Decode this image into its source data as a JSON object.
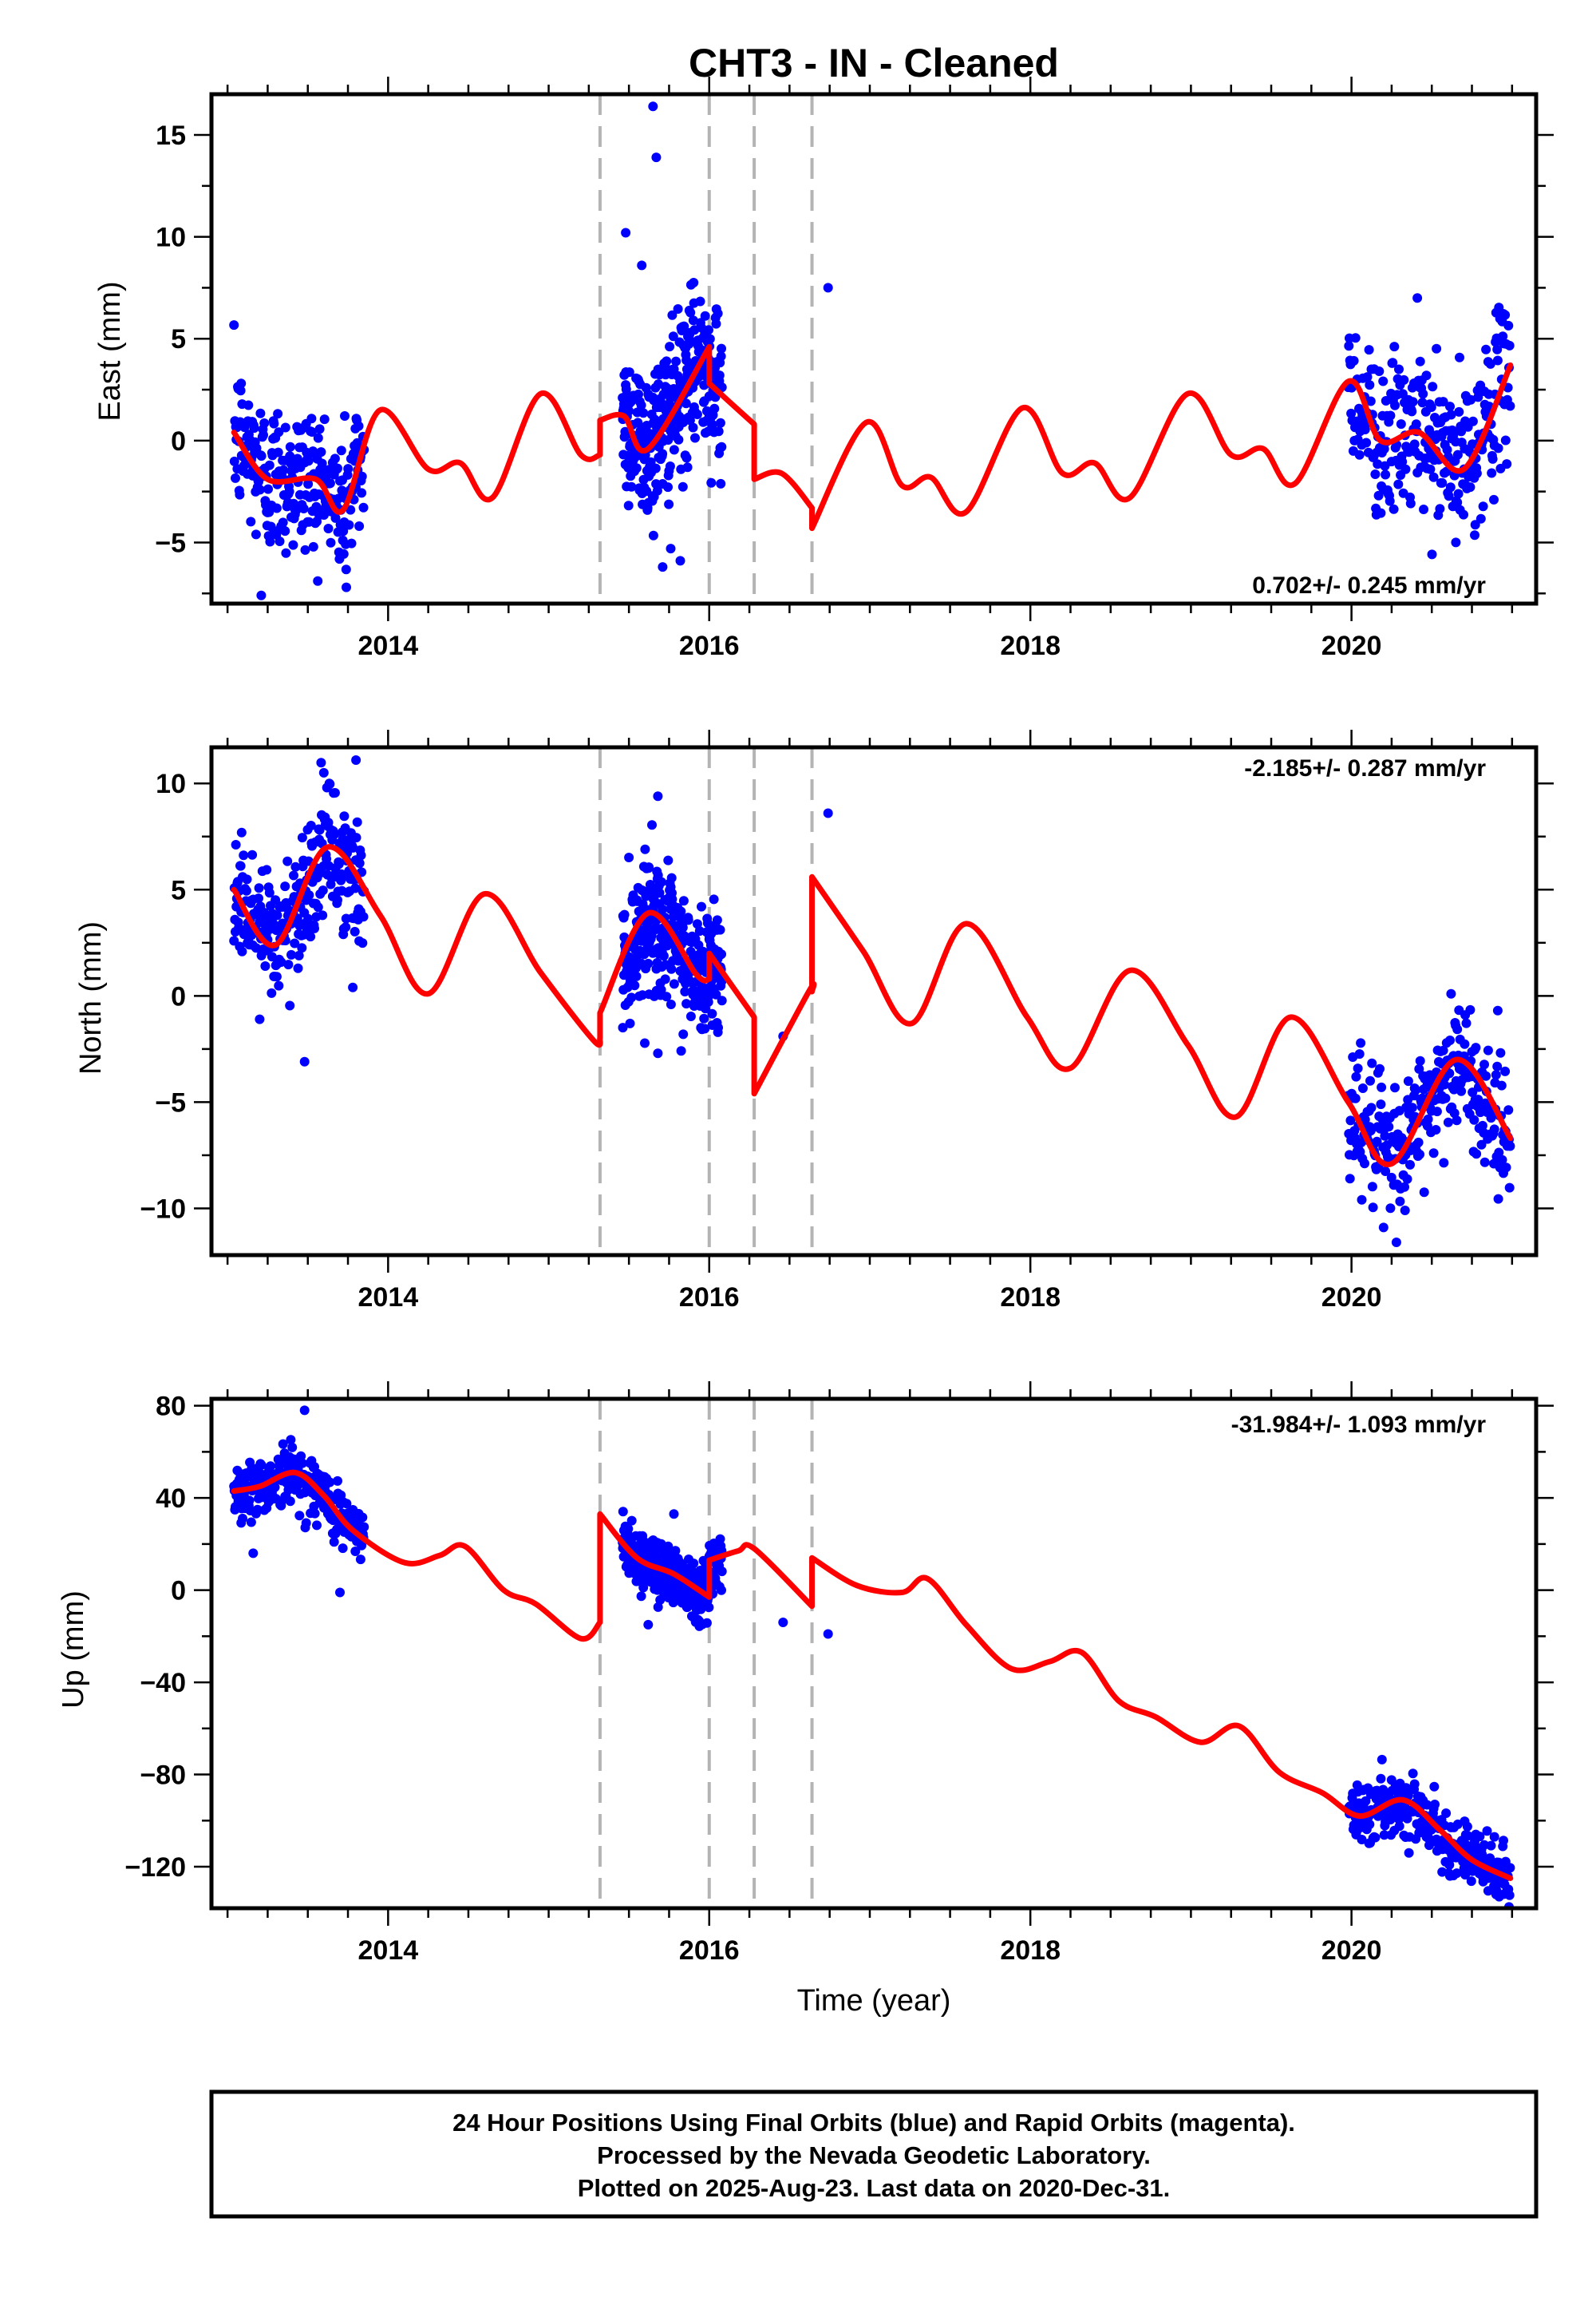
{
  "title": "CHT3  - IN - Cleaned",
  "footer_lines": [
    "24 Hour Positions Using Final Orbits (blue) and Rapid Orbits (magenta).",
    "Processed by the Nevada Geodetic Laboratory.",
    "Plotted on 2025-Aug-23. Last data on 2020-Dec-31."
  ],
  "colors": {
    "final_orbits": "#0000ff",
    "model_fit": "#ff0000",
    "steps": "#b4b4b4"
  },
  "x_axis": {
    "label": "Time (year)",
    "range": [
      2012.9,
      2021.15
    ],
    "major_ticks": [
      2014,
      2016,
      2018,
      2020
    ],
    "minor_step": 0.25
  },
  "step_epochs": [
    2015.32,
    2016.0,
    2016.28,
    2016.64
  ],
  "chart_data": [
    {
      "type": "scatter",
      "name": "east",
      "ylabel": "East (mm)",
      "ylim": [
        -8,
        17
      ],
      "yticks": [
        -5,
        0,
        5,
        10,
        15
      ],
      "rate_label": "0.702+/- 0.245 mm/yr",
      "rate_position": "bottom-right",
      "data_spans": [
        [
          2013.04,
          2013.85,
          0.3
        ],
        [
          2015.46,
          2016.08,
          0.18
        ],
        [
          2019.98,
          2020.99,
          0.35
        ]
      ],
      "scatter_sigma": 1.9,
      "outliers": [
        [
          2015.65,
          16.4
        ],
        [
          2015.67,
          13.9
        ],
        [
          2015.48,
          10.2
        ],
        [
          2015.58,
          8.6
        ],
        [
          2016.74,
          7.5
        ],
        [
          2020.41,
          7.0
        ],
        [
          2015.82,
          -5.9
        ],
        [
          2015.71,
          -6.2
        ],
        [
          2013.21,
          -7.6
        ],
        [
          2013.74,
          -7.2
        ],
        [
          2015.76,
          -5.3
        ],
        [
          2020.65,
          -5.0
        ]
      ],
      "model": [
        [
          2013.04,
          0.4
        ],
        [
          2013.25,
          -1.9
        ],
        [
          2013.55,
          -1.9
        ],
        [
          2013.72,
          -3.4
        ],
        [
          2013.95,
          1.5
        ],
        [
          2014.25,
          -1.4
        ],
        [
          2014.45,
          -1.1
        ],
        [
          2014.65,
          -2.8
        ],
        [
          2014.95,
          2.3
        ],
        [
          2015.2,
          -0.7
        ],
        [
          2015.32,
          -0.7
        ],
        [
          2015.32,
          1.0
        ],
        [
          2015.47,
          1.2
        ],
        [
          2015.62,
          -0.4
        ],
        [
          2016.0,
          4.6
        ],
        [
          2016.0,
          2.8
        ],
        [
          2016.28,
          0.8
        ],
        [
          2016.28,
          -1.9
        ],
        [
          2016.45,
          -1.6
        ],
        [
          2016.64,
          -3.3
        ],
        [
          2016.64,
          -4.3
        ],
        [
          2016.98,
          0.9
        ],
        [
          2017.2,
          -2.2
        ],
        [
          2017.38,
          -1.8
        ],
        [
          2017.6,
          -3.5
        ],
        [
          2017.95,
          1.6
        ],
        [
          2018.2,
          -1.6
        ],
        [
          2018.4,
          -1.1
        ],
        [
          2018.62,
          -2.8
        ],
        [
          2018.98,
          2.3
        ],
        [
          2019.25,
          -0.7
        ],
        [
          2019.45,
          -0.4
        ],
        [
          2019.65,
          -2.1
        ],
        [
          2019.98,
          2.9
        ],
        [
          2020.18,
          0.0
        ],
        [
          2020.42,
          0.4
        ],
        [
          2020.7,
          -1.4
        ],
        [
          2020.99,
          3.7
        ]
      ]
    },
    {
      "type": "scatter",
      "name": "north",
      "ylabel": "North (mm)",
      "ylim": [
        -12.2,
        11.7
      ],
      "yticks": [
        -10,
        -5,
        0,
        5,
        10
      ],
      "rate_label": "-2.185+/- 0.287 mm/yr",
      "rate_position": "top-right",
      "data_spans": [
        [
          2013.04,
          2013.85,
          0.3
        ],
        [
          2015.46,
          2016.08,
          0.18
        ],
        [
          2019.98,
          2020.99,
          0.35
        ]
      ],
      "scatter_sigma": 1.5,
      "outliers": [
        [
          2013.8,
          11.1
        ],
        [
          2013.6,
          10.5
        ],
        [
          2016.74,
          8.6
        ],
        [
          2015.68,
          9.4
        ],
        [
          2013.48,
          -3.1
        ],
        [
          2013.2,
          -1.1
        ],
        [
          2015.68,
          -2.7
        ],
        [
          2016.46,
          -1.9
        ],
        [
          2020.28,
          -11.6
        ],
        [
          2020.2,
          -10.9
        ],
        [
          2020.62,
          0.1
        ],
        [
          2013.78,
          0.4
        ]
      ],
      "model": [
        [
          2013.04,
          5.0
        ],
        [
          2013.3,
          2.4
        ],
        [
          2013.62,
          7.0
        ],
        [
          2013.95,
          3.8
        ],
        [
          2014.25,
          0.1
        ],
        [
          2014.6,
          4.8
        ],
        [
          2014.95,
          1.1
        ],
        [
          2015.28,
          -2.1
        ],
        [
          2015.32,
          -2.0
        ],
        [
          2015.32,
          -0.8
        ],
        [
          2015.62,
          3.9
        ],
        [
          2015.92,
          1.0
        ],
        [
          2016.0,
          0.8
        ],
        [
          2016.0,
          2.0
        ],
        [
          2016.28,
          -1.0
        ],
        [
          2016.28,
          -4.6
        ],
        [
          2016.62,
          0.2
        ],
        [
          2016.64,
          0.2
        ],
        [
          2016.64,
          5.6
        ],
        [
          2016.96,
          2.1
        ],
        [
          2017.26,
          -1.3
        ],
        [
          2017.6,
          3.4
        ],
        [
          2017.98,
          -1.0
        ],
        [
          2018.25,
          -3.4
        ],
        [
          2018.62,
          1.2
        ],
        [
          2018.98,
          -2.3
        ],
        [
          2019.28,
          -5.7
        ],
        [
          2019.62,
          -1.0
        ],
        [
          2019.98,
          -5.0
        ],
        [
          2020.25,
          -7.9
        ],
        [
          2020.65,
          -3.0
        ],
        [
          2020.99,
          -6.7
        ]
      ]
    },
    {
      "type": "scatter",
      "name": "up",
      "ylabel": "Up (mm)",
      "ylim": [
        -138,
        83
      ],
      "yticks": [
        -120,
        -80,
        -40,
        0,
        40,
        80
      ],
      "rate_label": "-31.984+/- 1.093 mm/yr",
      "rate_position": "top-right",
      "data_spans": [
        [
          2013.04,
          2013.85,
          0.3
        ],
        [
          2015.46,
          2016.08,
          0.18
        ],
        [
          2019.98,
          2020.99,
          0.35
        ]
      ],
      "scatter_sigma": 6.5,
      "outliers": [
        [
          2013.48,
          78
        ],
        [
          2013.16,
          16
        ],
        [
          2013.7,
          -1
        ],
        [
          2016.46,
          -14
        ],
        [
          2016.74,
          -19
        ],
        [
          2020.92,
          -133
        ],
        [
          2015.62,
          -15
        ],
        [
          2015.78,
          33
        ]
      ],
      "model": [
        [
          2013.04,
          43
        ],
        [
          2013.2,
          45
        ],
        [
          2013.42,
          51
        ],
        [
          2013.6,
          41
        ],
        [
          2013.78,
          26
        ],
        [
          2014.1,
          12
        ],
        [
          2014.32,
          15
        ],
        [
          2014.48,
          19
        ],
        [
          2014.72,
          0
        ],
        [
          2014.92,
          -6
        ],
        [
          2015.2,
          -21
        ],
        [
          2015.32,
          -14
        ],
        [
          2015.32,
          33
        ],
        [
          2015.55,
          14
        ],
        [
          2015.78,
          7
        ],
        [
          2016.0,
          -3
        ],
        [
          2016.0,
          13
        ],
        [
          2016.18,
          17
        ],
        [
          2016.28,
          18
        ],
        [
          2016.64,
          -7
        ],
        [
          2016.64,
          14
        ],
        [
          2016.92,
          2
        ],
        [
          2017.2,
          -1
        ],
        [
          2017.36,
          5
        ],
        [
          2017.6,
          -15
        ],
        [
          2017.88,
          -34
        ],
        [
          2018.12,
          -31
        ],
        [
          2018.32,
          -27
        ],
        [
          2018.55,
          -48
        ],
        [
          2018.78,
          -55
        ],
        [
          2019.06,
          -66
        ],
        [
          2019.3,
          -59
        ],
        [
          2019.55,
          -79
        ],
        [
          2019.82,
          -88
        ],
        [
          2020.05,
          -98
        ],
        [
          2020.32,
          -91
        ],
        [
          2020.55,
          -104
        ],
        [
          2020.75,
          -117
        ],
        [
          2020.99,
          -125
        ]
      ]
    }
  ]
}
